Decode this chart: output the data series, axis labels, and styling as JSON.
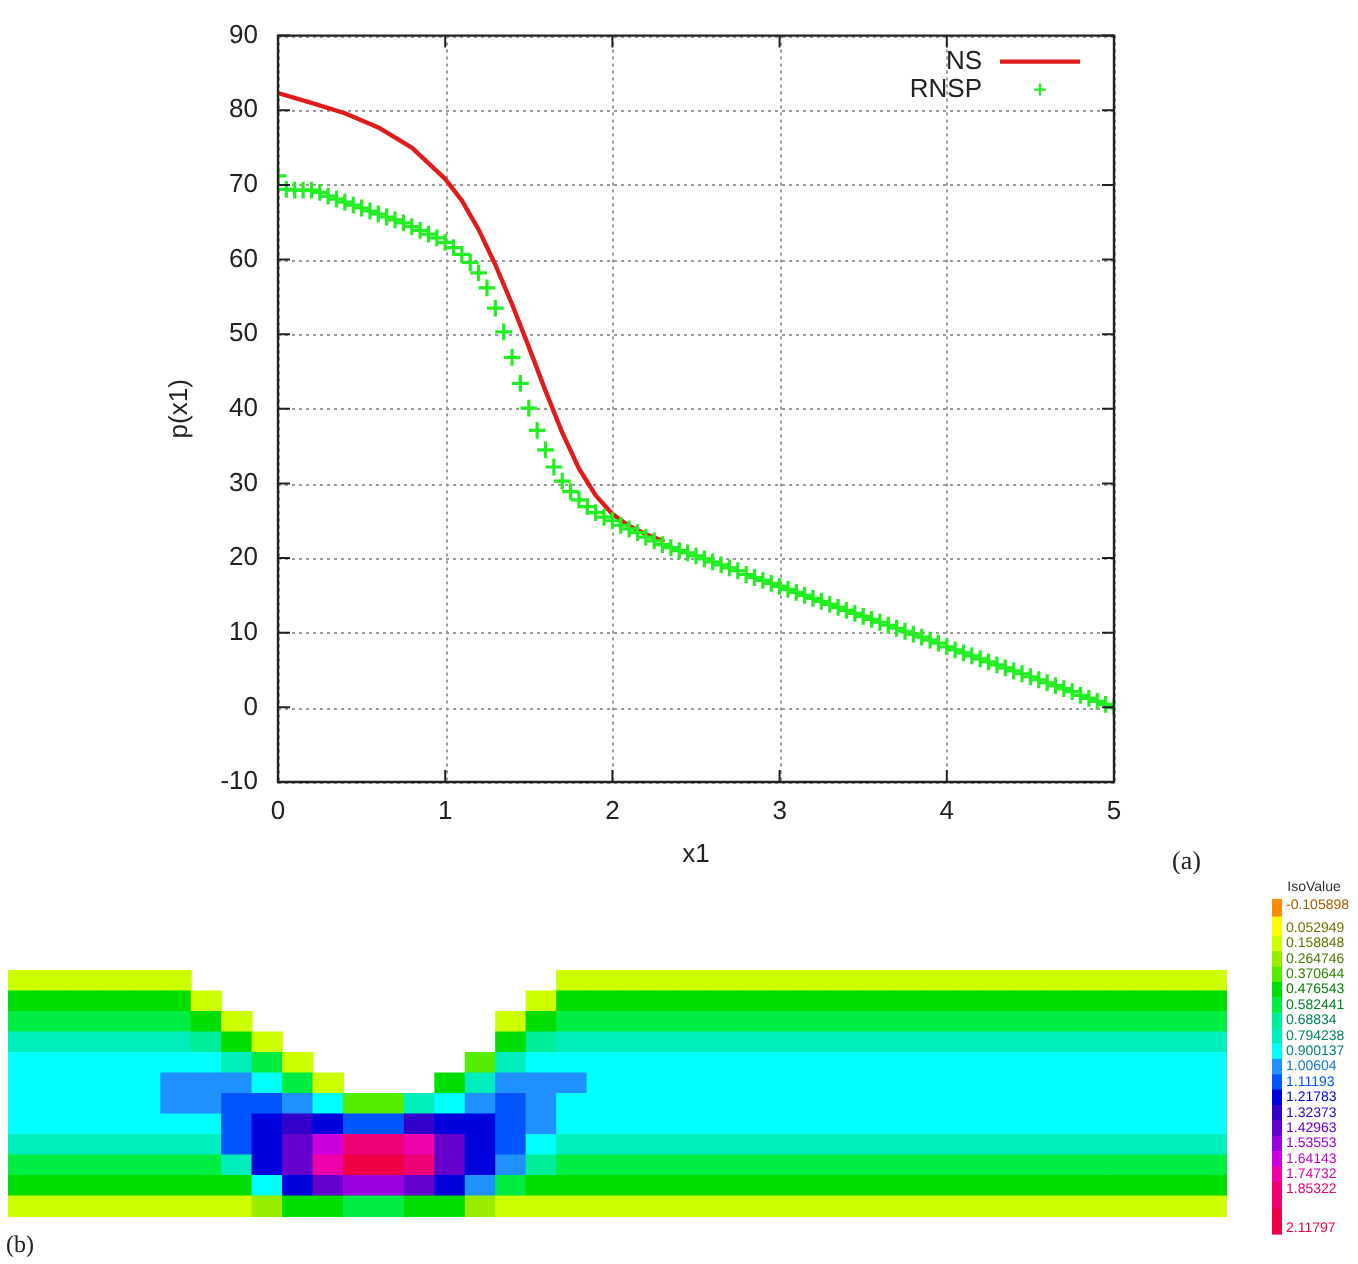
{
  "chart_data": [
    {
      "type": "line",
      "xlabel": "x1",
      "ylabel": "p(x1)",
      "xlim": [
        0,
        5
      ],
      "ylim": [
        -10,
        90
      ],
      "xticks": [
        0,
        1,
        2,
        3,
        4,
        5
      ],
      "yticks": [
        -10,
        0,
        10,
        20,
        30,
        40,
        50,
        60,
        70,
        80,
        90
      ],
      "grid": true,
      "legend": "top right",
      "annotations": [
        "(a)"
      ],
      "series": [
        {
          "name": "NS",
          "color": "#e01b1b",
          "x": [
            0,
            0.2,
            0.4,
            0.6,
            0.8,
            1.0,
            1.1,
            1.2,
            1.3,
            1.4,
            1.5,
            1.6,
            1.7,
            1.8,
            1.9,
            2.0,
            2.1,
            2.2,
            2.3
          ],
          "values": [
            82.3,
            81.0,
            79.6,
            77.7,
            75.0,
            70.8,
            67.9,
            64.0,
            59.3,
            54.0,
            48.3,
            42.4,
            36.8,
            32.0,
            28.4,
            25.9,
            24.3,
            23.2,
            22.3
          ]
        },
        {
          "name": "RNSP",
          "type": "scatter",
          "marker": "cross",
          "color": "#22ee22",
          "x": [
            0,
            0.05,
            0.1,
            0.15,
            0.2,
            0.25,
            0.3,
            0.35,
            0.4,
            0.45,
            0.5,
            0.55,
            0.6,
            0.65,
            0.7,
            0.75,
            0.8,
            0.85,
            0.9,
            0.95,
            1.0,
            1.05,
            1.1,
            1.15,
            1.2,
            1.25,
            1.3,
            1.35,
            1.4,
            1.45,
            1.5,
            1.55,
            1.6,
            1.65,
            1.7,
            1.75,
            1.8,
            1.85,
            1.9,
            1.95,
            2.0,
            2.05,
            2.1,
            2.15,
            2.2,
            2.25,
            2.3,
            2.35,
            2.4,
            2.45,
            2.5,
            2.55,
            2.6,
            2.65,
            2.7,
            2.75,
            2.8,
            2.85,
            2.9,
            2.95,
            3.0,
            3.05,
            3.1,
            3.15,
            3.2,
            3.25,
            3.3,
            3.35,
            3.4,
            3.45,
            3.5,
            3.55,
            3.6,
            3.65,
            3.7,
            3.75,
            3.8,
            3.85,
            3.9,
            3.95,
            4.0,
            4.05,
            4.1,
            4.15,
            4.2,
            4.25,
            4.3,
            4.35,
            4.4,
            4.45,
            4.5,
            4.55,
            4.6,
            4.65,
            4.7,
            4.75,
            4.8,
            4.85,
            4.9,
            4.95,
            5.0
          ],
          "values": [
            71.2,
            69.4,
            69.3,
            69.3,
            69.3,
            69.0,
            68.5,
            68.1,
            67.7,
            67.3,
            66.9,
            66.5,
            66.1,
            65.7,
            65.3,
            64.9,
            64.4,
            63.9,
            63.4,
            62.9,
            62.3,
            61.6,
            60.7,
            59.6,
            58.2,
            56.2,
            53.5,
            50.3,
            46.9,
            43.4,
            40.1,
            37.1,
            34.5,
            32.2,
            30.3,
            28.9,
            27.8,
            26.9,
            26.1,
            25.5,
            25.0,
            24.4,
            23.9,
            23.4,
            22.8,
            22.3,
            21.8,
            21.4,
            21.0,
            20.7,
            20.3,
            19.9,
            19.5,
            19.1,
            18.7,
            18.3,
            17.8,
            17.4,
            17.0,
            16.6,
            16.2,
            15.8,
            15.4,
            15.0,
            14.6,
            14.2,
            13.8,
            13.4,
            13.0,
            12.6,
            12.2,
            11.8,
            11.4,
            11.0,
            10.6,
            10.2,
            9.8,
            9.4,
            9.0,
            8.6,
            8.1,
            7.7,
            7.3,
            6.9,
            6.5,
            6.1,
            5.7,
            5.3,
            4.9,
            4.5,
            4.1,
            3.7,
            3.3,
            2.9,
            2.5,
            2.1,
            1.6,
            1.2,
            0.8,
            0.4,
            0.0
          ]
        }
      ]
    },
    {
      "type": "heatmap",
      "clabel": "IsoValue",
      "tick_labels": false,
      "annotations": [
        "(b)"
      ],
      "categories": [
        null,
        null,
        null,
        null,
        null,
        null,
        null,
        null,
        null,
        null,
        null,
        null,
        null,
        null,
        null,
        null,
        null,
        null,
        null,
        null,
        null,
        null,
        null,
        null,
        null,
        null,
        null,
        null,
        null,
        null,
        null,
        null,
        null,
        null,
        null,
        null,
        null,
        null,
        null,
        null
      ],
      "y_categories": [
        null,
        null,
        null,
        null,
        null,
        null,
        null,
        null,
        null,
        null,
        null,
        null
      ],
      "clim": [
        -0.105898,
        2.11797
      ],
      "cticks": [
        -0.105898,
        0.052949,
        0.158848,
        0.264746,
        0.370644,
        0.476543,
        0.582441,
        0.68834,
        0.794238,
        0.900137,
        1.00604,
        1.11193,
        1.21783,
        1.32373,
        1.42963,
        1.53553,
        1.64143,
        1.74732,
        1.85322,
        2.11797
      ],
      "colors": [
        "#ff8c00",
        "#ffff00",
        "#ccff00",
        "#99ee00",
        "#55ee00",
        "#00dd00",
        "#00ee44",
        "#00ee99",
        "#00eebb",
        "#00ffff",
        "#1e90ff",
        "#0055ff",
        "#0000dd",
        "#3300cc",
        "#6600cc",
        "#9900dd",
        "#cc00dd",
        "#ee00aa",
        "#ee0077",
        "#ee0044"
      ],
      "cells": [
        [
          0.16,
          0.16,
          0.16,
          0.16,
          0.16,
          0.16,
          null,
          null,
          null,
          null,
          null,
          null,
          null,
          null,
          null,
          null,
          null,
          null,
          0.16,
          0.16,
          0.16,
          0.16,
          0.16,
          0.16,
          0.16,
          0.16,
          0.16,
          0.16,
          0.16,
          0.16,
          0.16,
          0.16,
          0.16,
          0.16,
          0.16,
          0.16,
          0.16,
          0.16,
          0.16,
          0.16
        ],
        [
          0.48,
          0.48,
          0.48,
          0.48,
          0.48,
          0.48,
          0.16,
          null,
          null,
          null,
          null,
          null,
          null,
          null,
          null,
          null,
          null,
          0.16,
          0.48,
          0.48,
          0.48,
          0.48,
          0.48,
          0.48,
          0.48,
          0.48,
          0.48,
          0.48,
          0.48,
          0.48,
          0.48,
          0.48,
          0.48,
          0.48,
          0.48,
          0.48,
          0.48,
          0.48,
          0.48,
          0.48
        ],
        [
          0.58,
          0.58,
          0.58,
          0.58,
          0.58,
          0.58,
          0.48,
          0.16,
          null,
          null,
          null,
          null,
          null,
          null,
          null,
          null,
          0.16,
          0.48,
          0.58,
          0.58,
          0.58,
          0.58,
          0.58,
          0.58,
          0.58,
          0.58,
          0.58,
          0.58,
          0.58,
          0.58,
          0.58,
          0.58,
          0.58,
          0.58,
          0.58,
          0.58,
          0.58,
          0.58,
          0.58,
          0.58
        ],
        [
          0.79,
          0.79,
          0.79,
          0.79,
          0.79,
          0.79,
          0.69,
          0.48,
          0.16,
          null,
          null,
          null,
          null,
          null,
          null,
          null,
          0.48,
          0.69,
          0.79,
          0.79,
          0.79,
          0.79,
          0.79,
          0.79,
          0.79,
          0.79,
          0.79,
          0.79,
          0.79,
          0.79,
          0.79,
          0.79,
          0.79,
          0.79,
          0.79,
          0.79,
          0.79,
          0.79,
          0.79,
          0.79
        ],
        [
          0.9,
          0.9,
          0.9,
          0.9,
          0.9,
          0.9,
          0.9,
          0.79,
          0.58,
          0.16,
          null,
          null,
          null,
          null,
          null,
          0.37,
          0.79,
          0.9,
          0.9,
          0.9,
          0.9,
          0.9,
          0.9,
          0.9,
          0.9,
          0.9,
          0.9,
          0.9,
          0.9,
          0.9,
          0.9,
          0.9,
          0.9,
          0.9,
          0.9,
          0.9,
          0.9,
          0.9,
          0.9,
          0.9
        ],
        [
          0.9,
          0.9,
          0.9,
          0.9,
          0.9,
          1.01,
          1.01,
          1.01,
          0.9,
          0.58,
          0.16,
          null,
          null,
          null,
          0.48,
          0.79,
          1.01,
          1.01,
          1.01,
          0.9,
          0.9,
          0.9,
          0.9,
          0.9,
          0.9,
          0.9,
          0.9,
          0.9,
          0.9,
          0.9,
          0.9,
          0.9,
          0.9,
          0.9,
          0.9,
          0.9,
          0.9,
          0.9,
          0.9,
          0.9
        ],
        [
          0.9,
          0.9,
          0.9,
          0.9,
          0.9,
          1.01,
          1.01,
          1.11,
          1.11,
          1.01,
          0.9,
          0.37,
          0.37,
          0.79,
          0.9,
          1.01,
          1.11,
          1.01,
          0.9,
          0.9,
          0.9,
          0.9,
          0.9,
          0.9,
          0.9,
          0.9,
          0.9,
          0.9,
          0.9,
          0.9,
          0.9,
          0.9,
          0.9,
          0.9,
          0.9,
          0.9,
          0.9,
          0.9,
          0.9,
          0.9
        ],
        [
          0.9,
          0.9,
          0.9,
          0.9,
          0.9,
          0.9,
          0.9,
          1.11,
          1.22,
          1.32,
          1.22,
          1.11,
          1.11,
          1.32,
          1.22,
          1.22,
          1.11,
          1.01,
          0.9,
          0.9,
          0.9,
          0.9,
          0.9,
          0.9,
          0.9,
          0.9,
          0.9,
          0.9,
          0.9,
          0.9,
          0.9,
          0.9,
          0.9,
          0.9,
          0.9,
          0.9,
          0.9,
          0.9,
          0.9,
          0.9
        ],
        [
          0.79,
          0.79,
          0.79,
          0.79,
          0.79,
          0.79,
          0.79,
          1.11,
          1.22,
          1.43,
          1.64,
          1.85,
          1.85,
          1.75,
          1.43,
          1.22,
          1.11,
          0.9,
          0.79,
          0.79,
          0.79,
          0.79,
          0.79,
          0.79,
          0.79,
          0.79,
          0.79,
          0.79,
          0.79,
          0.79,
          0.79,
          0.79,
          0.79,
          0.79,
          0.79,
          0.79,
          0.79,
          0.79,
          0.79,
          0.79
        ],
        [
          0.58,
          0.58,
          0.58,
          0.58,
          0.58,
          0.58,
          0.58,
          0.79,
          1.22,
          1.43,
          1.75,
          2.12,
          2.12,
          1.85,
          1.43,
          1.22,
          1.01,
          0.69,
          0.58,
          0.58,
          0.58,
          0.58,
          0.58,
          0.58,
          0.58,
          0.58,
          0.58,
          0.58,
          0.58,
          0.58,
          0.58,
          0.58,
          0.58,
          0.58,
          0.58,
          0.58,
          0.58,
          0.58,
          0.58,
          0.58
        ],
        [
          0.48,
          0.48,
          0.48,
          0.48,
          0.48,
          0.48,
          0.48,
          0.48,
          0.9,
          1.22,
          1.43,
          1.54,
          1.54,
          1.43,
          1.22,
          1.01,
          0.58,
          0.48,
          0.48,
          0.48,
          0.48,
          0.48,
          0.48,
          0.48,
          0.48,
          0.48,
          0.48,
          0.48,
          0.48,
          0.48,
          0.48,
          0.48,
          0.48,
          0.48,
          0.48,
          0.48,
          0.48,
          0.48,
          0.48,
          0.48
        ],
        [
          0.16,
          0.16,
          0.16,
          0.16,
          0.16,
          0.16,
          0.16,
          0.16,
          0.26,
          0.48,
          0.48,
          0.58,
          0.58,
          0.48,
          0.48,
          0.26,
          0.16,
          0.16,
          0.16,
          0.16,
          0.16,
          0.16,
          0.16,
          0.16,
          0.16,
          0.16,
          0.16,
          0.16,
          0.16,
          0.16,
          0.16,
          0.16,
          0.16,
          0.16,
          0.16,
          0.16,
          0.16,
          0.16,
          0.16,
          0.16
        ]
      ]
    }
  ]
}
